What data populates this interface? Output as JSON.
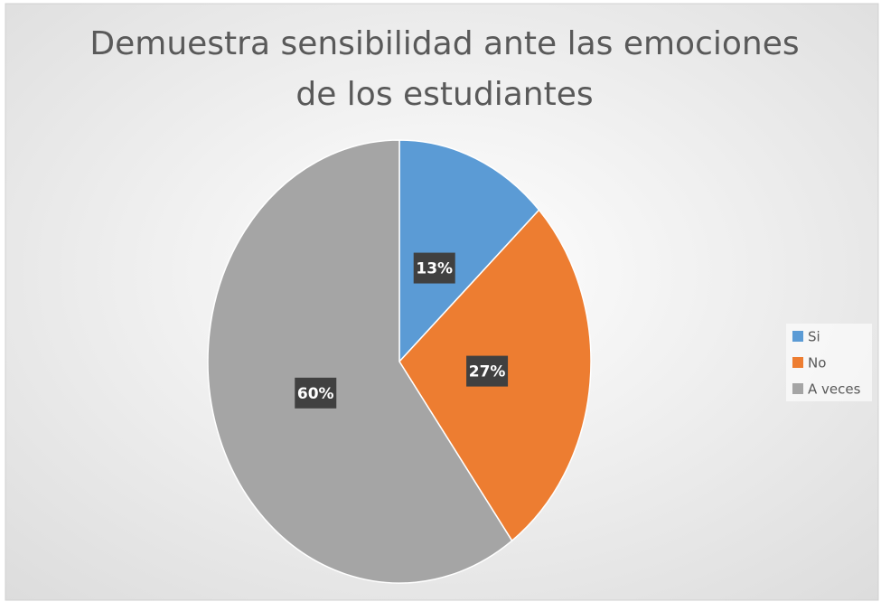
{
  "chart_data": {
    "type": "pie",
    "title": [
      "Demuestra sensibilidad ante las emociones",
      "de los estudiantes"
    ],
    "categories": [
      "Si",
      "No",
      "A veces"
    ],
    "values": [
      13,
      27,
      60
    ],
    "value_labels": [
      "13%",
      "27%",
      "60%"
    ],
    "colors": [
      "#5b9bd5",
      "#ed7d31",
      "#a5a5a5"
    ],
    "legend": "right"
  }
}
